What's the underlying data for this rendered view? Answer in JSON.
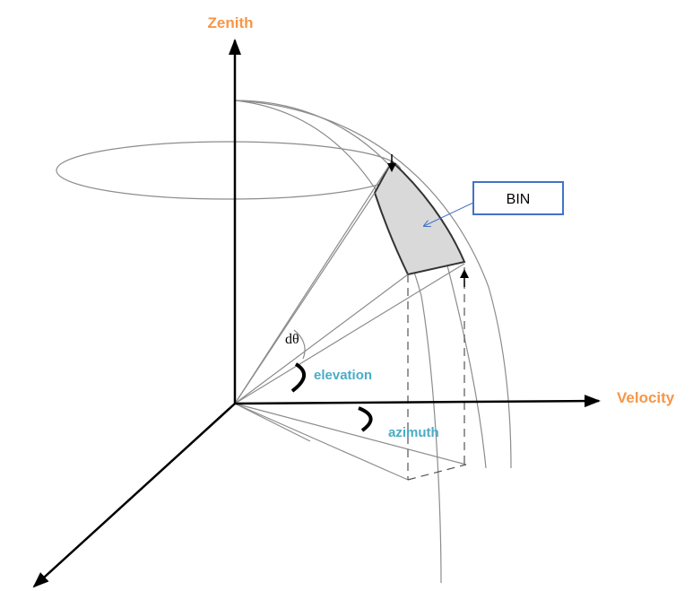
{
  "labels": {
    "zenith": "Zenith",
    "velocity": "Velocity",
    "bin": "BIN",
    "dtheta": "dθ",
    "elevation": "elevation",
    "azimuth": "azimuth"
  }
}
